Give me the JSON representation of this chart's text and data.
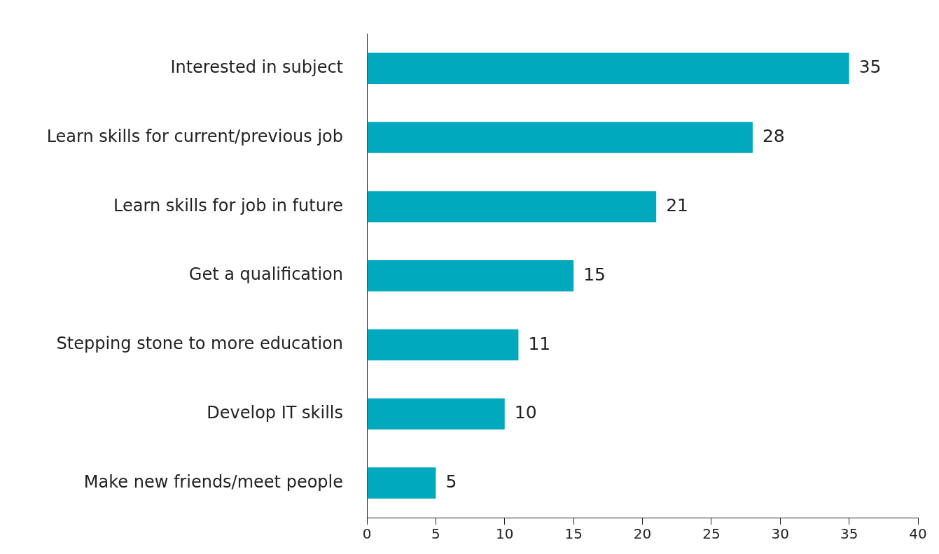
{
  "chart_data": {
    "type": "bar",
    "orientation": "horizontal",
    "categories": [
      "Interested in subject",
      "Learn skills for current/previous job",
      "Learn skills for job in future",
      "Get a qualification",
      "Stepping stone to more education",
      "Develop IT skills",
      "Make new friends/meet people"
    ],
    "values": [
      35,
      28,
      21,
      15,
      11,
      10,
      5
    ],
    "color": "#00a9bd",
    "xlim": [
      0,
      40
    ],
    "xticks": [
      0,
      5,
      10,
      15,
      20,
      25,
      30,
      35,
      40
    ],
    "data_labels": true,
    "grid": false,
    "legend": false
  }
}
